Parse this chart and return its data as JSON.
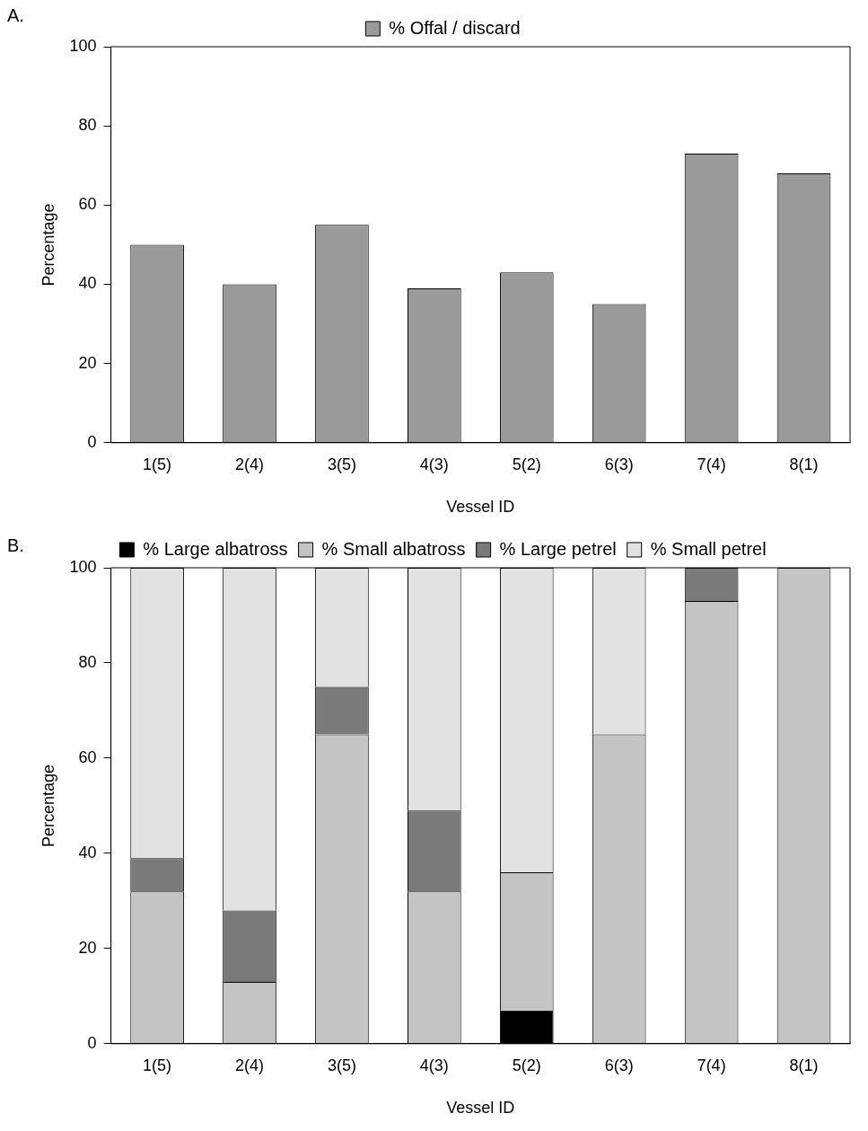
{
  "chart_data": [
    {
      "type": "bar",
      "annotations": [
        "A."
      ],
      "xlabel": "Vessel ID",
      "ylabel": "Percentage",
      "categories": [
        "1(5)",
        "2(4)",
        "3(5)",
        "4(3)",
        "5(2)",
        "6(3)",
        "7(4)",
        "8(1)"
      ],
      "series": [
        {
          "name": "% Offal / discard",
          "color": "#9a9a9a",
          "values": [
            50,
            40,
            55,
            39,
            43,
            35,
            73,
            68
          ]
        }
      ],
      "ylim": [
        0,
        100
      ],
      "yticks": [
        0,
        20,
        40,
        60,
        80,
        100
      ],
      "grid": false,
      "legend": "top"
    },
    {
      "type": "bar",
      "annotations": [
        "B."
      ],
      "xlabel": "Vessel ID",
      "ylabel": "Percentage",
      "stacked": true,
      "categories": [
        "1(5)",
        "2(4)",
        "3(5)",
        "4(3)",
        "5(2)",
        "6(3)",
        "7(4)",
        "8(1)"
      ],
      "series": [
        {
          "name": "% Large albatross",
          "color": "#000000",
          "values": [
            0,
            0,
            0,
            0,
            7,
            0,
            0,
            0
          ]
        },
        {
          "name": "% Small albatross",
          "color": "#c4c4c4",
          "values": [
            32,
            13,
            65,
            32,
            29,
            65,
            93,
            100
          ]
        },
        {
          "name": "% Large petrel",
          "color": "#7a7a7a",
          "values": [
            7,
            15,
            10,
            17,
            0,
            0,
            7,
            0
          ]
        },
        {
          "name": "% Small petrel",
          "color": "#e2e2e2",
          "values": [
            61,
            72,
            25,
            51,
            64,
            35,
            0,
            0
          ]
        }
      ],
      "ylim": [
        0,
        100
      ],
      "yticks": [
        0,
        20,
        40,
        60,
        80,
        100
      ],
      "grid": false,
      "legend": "top"
    }
  ]
}
